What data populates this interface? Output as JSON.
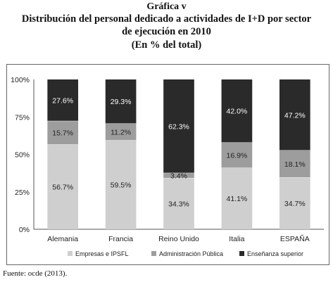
{
  "header": {
    "kicker": "Gráfica v",
    "title_line1": "Distribución del personal dedicado a actividades de I+D por sector",
    "title_line2": "de ejecución en 2010",
    "unit": "(En % del total)"
  },
  "source": "Fuente: ocde (2013).",
  "colors": {
    "empresas": "#cfcfcf",
    "administracion": "#9d9d9d",
    "ensenanza": "#2a2a2a",
    "axis": "#555555"
  },
  "chart_data": {
    "type": "bar",
    "stacked": true,
    "categories": [
      "Alemania",
      "Francia",
      "Reino Unido",
      "Italia",
      "ESPAÑA"
    ],
    "ylim": [
      0,
      100
    ],
    "yticks": [
      "0%",
      "25%",
      "50%",
      "75%",
      "100%"
    ],
    "series": [
      {
        "name": "Empresas e IPSFL",
        "values": [
          56.7,
          59.5,
          34.3,
          41.1,
          34.7
        ],
        "labels": [
          "56.7%",
          "59.5%",
          "34.3%",
          "41.1%",
          "34.7%"
        ]
      },
      {
        "name": "Administración Pública",
        "values": [
          15.7,
          11.2,
          3.4,
          16.9,
          18.1
        ],
        "labels": [
          "15.7%",
          "11.2%",
          "3.4%",
          "16.9%",
          "18.1%"
        ]
      },
      {
        "name": "Enseñanza superior",
        "values": [
          27.6,
          29.3,
          62.3,
          42.0,
          47.2
        ],
        "labels": [
          "27.6%",
          "29.3%",
          "62.3%",
          "42.0%",
          "47.2%"
        ]
      }
    ],
    "grid": false,
    "legend_position": "bottom"
  }
}
